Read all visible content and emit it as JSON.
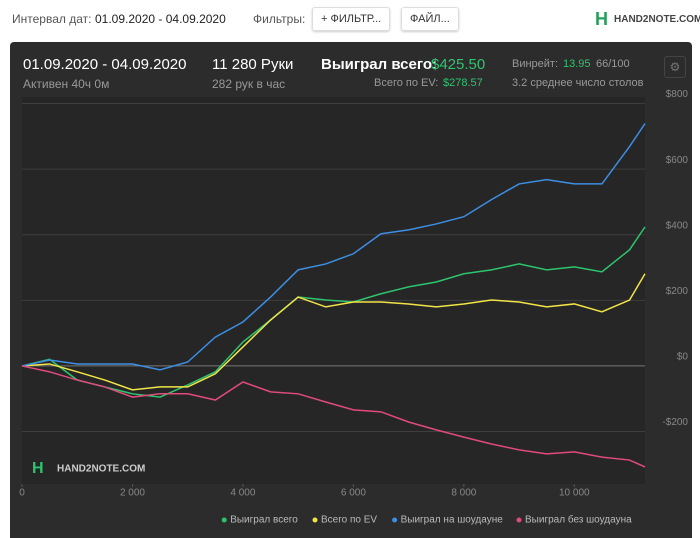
{
  "toolbar": {
    "date_label": "Интервал дат:",
    "date_range": "01.09.2020 - 04.09.2020",
    "filters_label": "Фильтры:",
    "filter_button": "+ ФИЛЬТР...",
    "file_button": "ФАЙЛ...",
    "logo": "HAND2NOTE.COM"
  },
  "summary": {
    "range": "01.09.2020 - 04.09.2020",
    "active": "Активен 40ч 0м",
    "hands": "11 280 Руки",
    "per_hour": "282 рук в час",
    "won_label": "Выиграл всего:",
    "won_value": "$425.50",
    "ev_label": "Всего по EV:",
    "ev_value": "$278.57",
    "winrate_label": "Винрейт:",
    "winrate_value": "13.95",
    "winrate_unit": "66/100",
    "tables": "3.2 среднее число столов"
  },
  "chart_data": {
    "type": "line",
    "watermark": "HAND2NOTE.COM",
    "x": [
      0,
      500,
      1000,
      1500,
      2000,
      2500,
      3000,
      3500,
      4000,
      4500,
      5000,
      5500,
      6000,
      6500,
      7000,
      7500,
      8000,
      8500,
      9000,
      9500,
      10000,
      10500,
      11000,
      11280
    ],
    "series": [
      {
        "name": "Выиграл всего",
        "color": "#2ec46e",
        "values": [
          0,
          20,
          -43,
          -64,
          -85,
          -95,
          -58,
          -18,
          73,
          140,
          210,
          201,
          195,
          220,
          241,
          256,
          281,
          293,
          311,
          293,
          302,
          287,
          354,
          424
        ]
      },
      {
        "name": "Всего по EV",
        "color": "#f2e447",
        "values": [
          0,
          6,
          -18,
          -43,
          -73,
          -64,
          -64,
          -24,
          58,
          140,
          210,
          180,
          195,
          195,
          189,
          180,
          189,
          201,
          195,
          180,
          189,
          165,
          201,
          281
        ]
      },
      {
        "name": "Выиграл на шоудауне",
        "color": "#3d8fe3",
        "values": [
          0,
          18,
          6,
          6,
          6,
          -12,
          12,
          88,
          134,
          210,
          293,
          311,
          342,
          403,
          415,
          433,
          455,
          507,
          555,
          568,
          555,
          555,
          669,
          739
        ]
      },
      {
        "name": "Выиграл без шоудауна",
        "color": "#e04a7c",
        "values": [
          0,
          -18,
          -43,
          -64,
          -95,
          -85,
          -85,
          -104,
          -49,
          -79,
          -85,
          -110,
          -134,
          -140,
          -171,
          -195,
          -217,
          -238,
          -256,
          -268,
          -262,
          -278,
          -287,
          -308
        ]
      }
    ],
    "xlim": [
      0,
      11280
    ],
    "ylim": [
      -360,
      820
    ],
    "xticks": [
      0,
      {
        "value": 2000,
        "label": "2 000"
      },
      {
        "value": 4000,
        "label": "4 000"
      },
      {
        "value": 6000,
        "label": "6 000"
      },
      {
        "value": 8000,
        "label": "8 000"
      },
      {
        "value": 10000,
        "label": "10 000"
      }
    ],
    "yticks": [
      {
        "value": -200,
        "label": "-$200"
      },
      {
        "value": 0,
        "label": "$0"
      },
      {
        "value": 200,
        "label": "$200"
      },
      {
        "value": 400,
        "label": "$400"
      },
      {
        "value": 600,
        "label": "$600"
      },
      {
        "value": 800,
        "label": "$800"
      }
    ],
    "grid": true,
    "legend": "bottom-right"
  }
}
